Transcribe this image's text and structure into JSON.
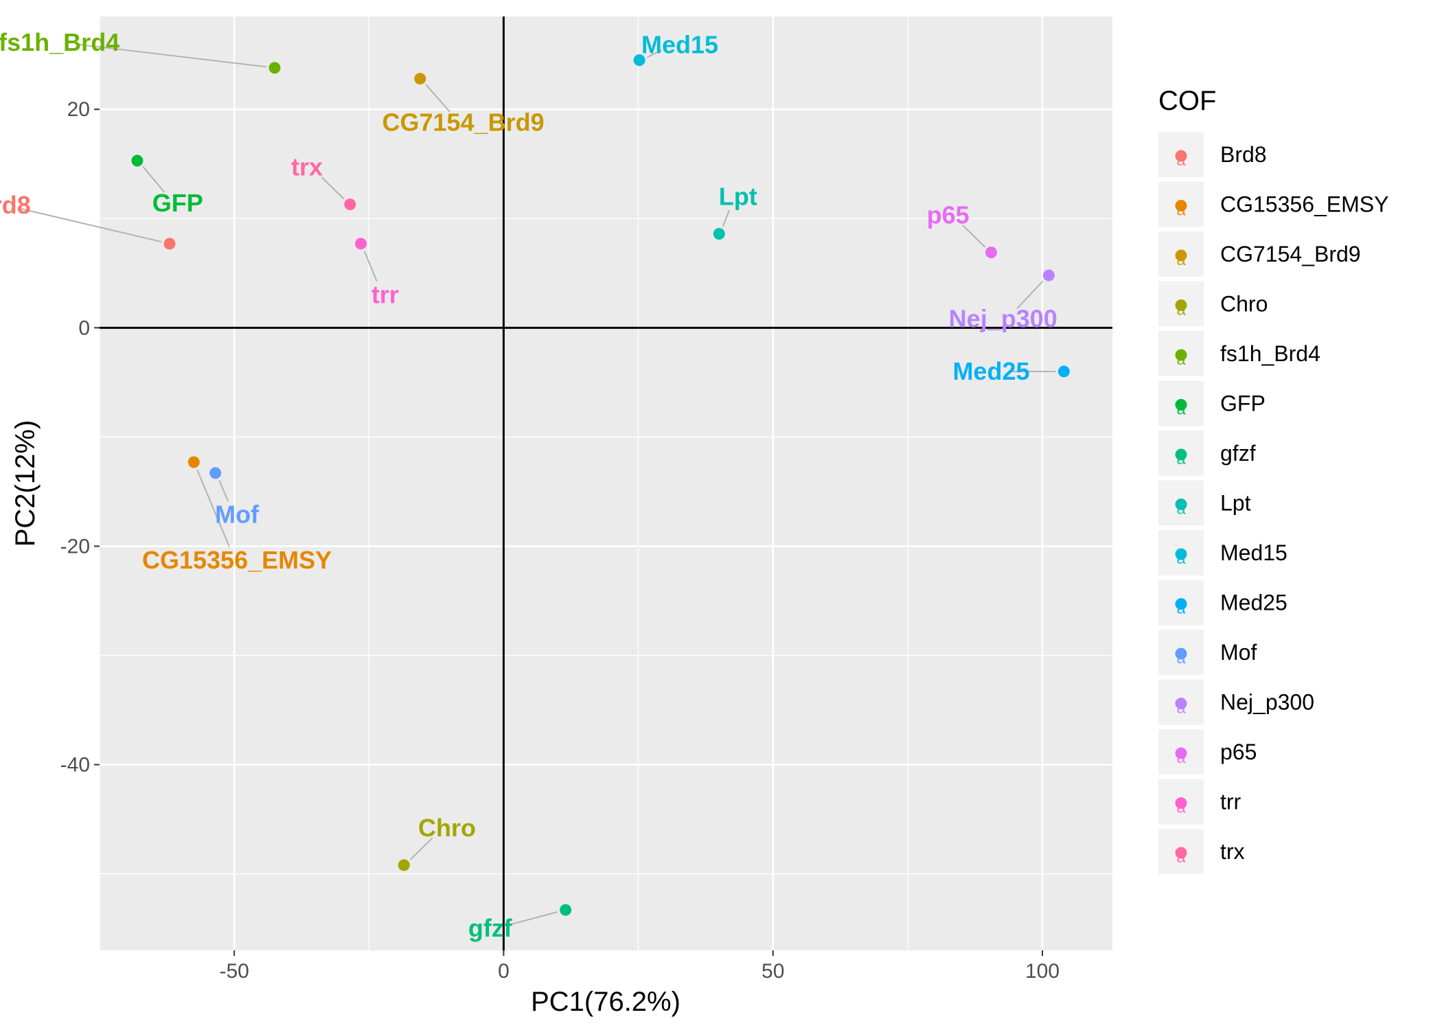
{
  "chart_data": {
    "type": "scatter",
    "xlabel": "PC1(76.2%)",
    "ylabel": "PC2(12%)",
    "xlim": [
      -75,
      113
    ],
    "ylim": [
      -57,
      28.5
    ],
    "x_ticks": [
      -50,
      0,
      50,
      100
    ],
    "y_ticks": [
      -40,
      -20,
      0,
      20
    ],
    "grid": true,
    "reference_lines": {
      "x": 0,
      "y": 0
    },
    "legend": {
      "title": "COF",
      "position": "right"
    },
    "points": [
      {
        "name": "Brd8",
        "x": -62,
        "y": 7.7,
        "color": "#F8766D",
        "label_dx": -31,
        "label_dy": 3.5
      },
      {
        "name": "CG15356_EMSY",
        "x": -57.5,
        "y": -12.3,
        "color": "#E58700",
        "label_dx": 8,
        "label_dy": -9
      },
      {
        "name": "CG7154_Brd9",
        "x": -15.5,
        "y": 22.8,
        "color": "#C99800",
        "label_dx": 8,
        "label_dy": -4
      },
      {
        "name": "Chro",
        "x": -18.5,
        "y": -49.2,
        "color": "#A3A500",
        "label_dx": 8,
        "label_dy": 3.4
      },
      {
        "name": "fs1h_Brd4",
        "x": -42.5,
        "y": 23.8,
        "color": "#6BB100",
        "label_dx": -40,
        "label_dy": 2.3
      },
      {
        "name": "GFP",
        "x": -68,
        "y": 15.3,
        "color": "#00BA38",
        "label_dx": 7.5,
        "label_dy": -3.9
      },
      {
        "name": "gfzf",
        "x": 11.5,
        "y": -53.3,
        "color": "#00BF7D",
        "label_dx": -14,
        "label_dy": -1.7
      },
      {
        "name": "Lpt",
        "x": 40,
        "y": 8.6,
        "color": "#00C0AF",
        "label_dx": 3.5,
        "label_dy": 3.4
      },
      {
        "name": "Med15",
        "x": 25.2,
        "y": 24.5,
        "color": "#00BCD8",
        "label_dx": 7.5,
        "label_dy": 1.4
      },
      {
        "name": "Med25",
        "x": 104,
        "y": -4,
        "color": "#00B0F6",
        "label_dx": -13.5,
        "label_dy": 0
      },
      {
        "name": "Mof",
        "x": -53.5,
        "y": -13.3,
        "color": "#619CFF",
        "label_dx": 4,
        "label_dy": -3.8
      },
      {
        "name": "Nej_p300",
        "x": 101.2,
        "y": 4.8,
        "color": "#B983FF",
        "label_dx": -8.5,
        "label_dy": -4
      },
      {
        "name": "p65",
        "x": 90.5,
        "y": 6.9,
        "color": "#E76BF3",
        "label_dx": -8,
        "label_dy": 3.4
      },
      {
        "name": "trr",
        "x": -26.5,
        "y": 7.7,
        "color": "#FD61D1",
        "label_dx": 4.5,
        "label_dy": -4.7
      },
      {
        "name": "trx",
        "x": -28.5,
        "y": 11.3,
        "color": "#FF67A4",
        "label_dx": -8,
        "label_dy": 3.4
      }
    ]
  }
}
